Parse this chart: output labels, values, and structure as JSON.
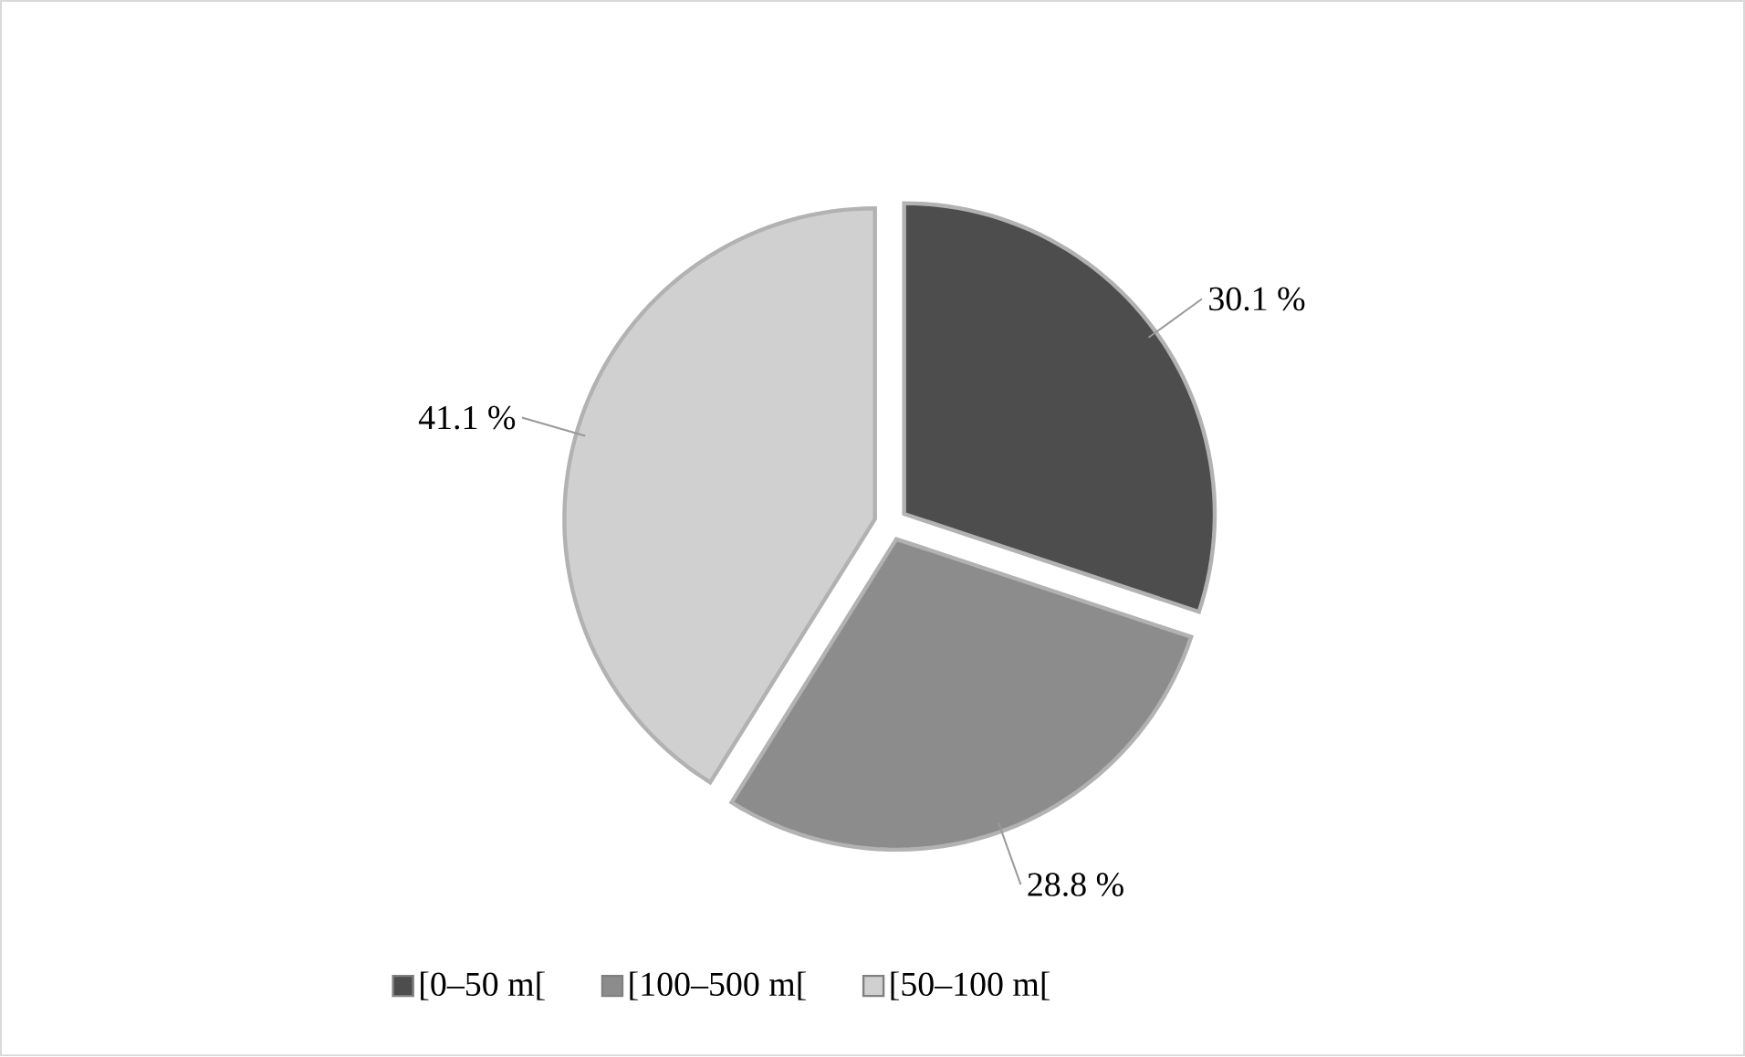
{
  "chart_data": {
    "type": "pie",
    "categories": [
      "[0–50 m[",
      "[100–500 m[",
      "[50–100 m["
    ],
    "values": [
      30.1,
      28.8,
      41.1
    ],
    "value_labels": [
      "30.1 %",
      "28.8 %",
      "41.1 %"
    ],
    "colors": [
      "#4d4d4d",
      "#8c8c8c",
      "#d0d0d0"
    ],
    "legend": "bottom"
  }
}
